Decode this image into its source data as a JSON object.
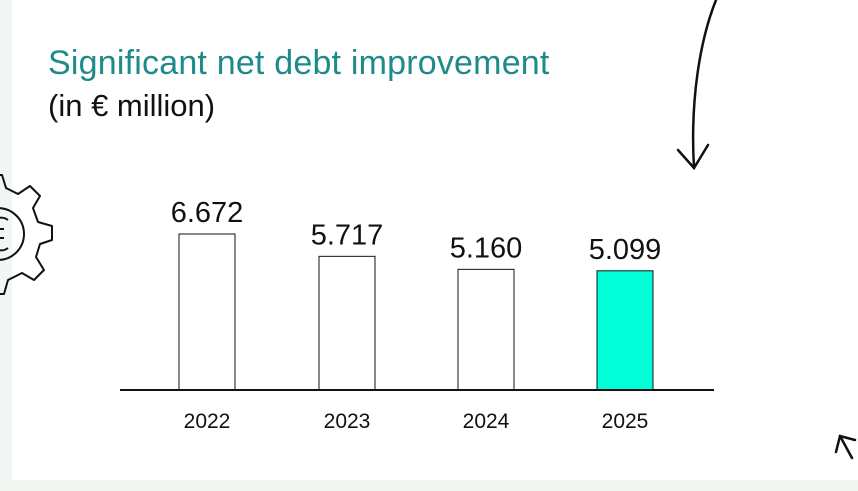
{
  "colors": {
    "title": "#1e8a8a",
    "highlight": "#00ffd9",
    "bar_default": "#ffffff",
    "outline": "#111111"
  },
  "icons": [
    "gear-euro-icon",
    "curved-arrow-icon",
    "small-arrow-icon"
  ],
  "chart_data": {
    "type": "bar",
    "title": "Significant net debt improvement",
    "subtitle": "(in € million)",
    "categories": [
      "2022",
      "2023",
      "2024",
      "2025"
    ],
    "values": [
      6672,
      5717,
      5160,
      5099
    ],
    "value_labels": [
      "6.672",
      "5.717",
      "5.160",
      "5.099"
    ],
    "highlight_index": 3,
    "xlabel": "",
    "ylabel": "",
    "ylim": [
      0,
      6672
    ],
    "grid": false,
    "legend": "none"
  }
}
